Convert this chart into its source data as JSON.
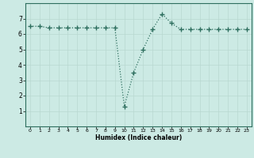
{
  "title": "",
  "xlabel": "Humidex (Indice chaleur)",
  "ylabel": "",
  "x": [
    0,
    1,
    2,
    3,
    4,
    5,
    6,
    7,
    8,
    9,
    10,
    11,
    12,
    13,
    14,
    15,
    16,
    17,
    18,
    19,
    20,
    21,
    22,
    23
  ],
  "y": [
    6.5,
    6.5,
    6.4,
    6.4,
    6.4,
    6.4,
    6.4,
    6.4,
    6.4,
    6.4,
    1.3,
    3.5,
    5.0,
    6.3,
    7.3,
    6.7,
    6.3,
    6.3,
    6.3,
    6.3,
    6.3,
    6.3,
    6.3,
    6.3
  ],
  "line_color": "#2d6e5e",
  "bg_color": "#cceae4",
  "grid_color": "#b8d8d0",
  "ylim": [
    0,
    8
  ],
  "xlim": [
    -0.5,
    23.5
  ],
  "yticks": [
    1,
    2,
    3,
    4,
    5,
    6,
    7
  ],
  "xticks": [
    0,
    1,
    2,
    3,
    4,
    5,
    6,
    7,
    8,
    9,
    10,
    11,
    12,
    13,
    14,
    15,
    16,
    17,
    18,
    19,
    20,
    21,
    22,
    23
  ]
}
